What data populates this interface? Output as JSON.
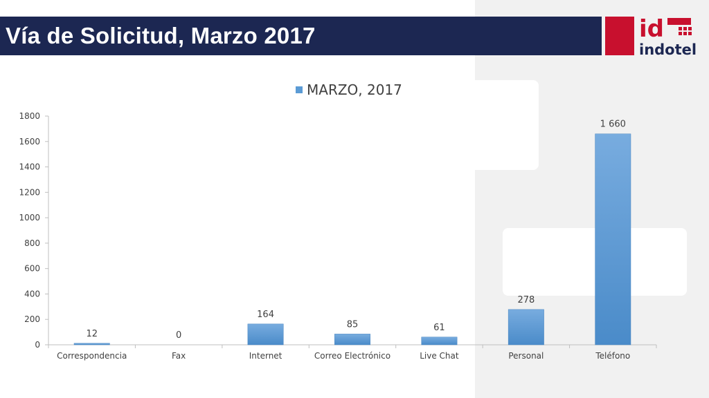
{
  "header": {
    "title": "Vía de Solicitud, Marzo 2017"
  },
  "logo": {
    "mark": "id",
    "name": "indotel"
  },
  "colors": {
    "title_bar": "#1c2752",
    "bar": "#5b9bd5",
    "logo_red": "#c8102e"
  },
  "chart_data": {
    "type": "bar",
    "categories": [
      "Correspondencia",
      "Fax",
      "Internet",
      "Correo Electrónico",
      "Live Chat",
      "Personal",
      "Teléfono"
    ],
    "series": [
      {
        "name": "MARZO, 2017",
        "values": [
          12,
          0,
          164,
          85,
          61,
          278,
          1660
        ]
      }
    ],
    "data_labels": [
      "12",
      "0",
      "164",
      "85",
      "61",
      "278",
      "1 660"
    ],
    "yticks": [
      0,
      200,
      400,
      600,
      800,
      1000,
      1200,
      1400,
      1600,
      1800
    ],
    "ylim": [
      0,
      1800
    ],
    "legend_position": "top",
    "grid": false
  }
}
